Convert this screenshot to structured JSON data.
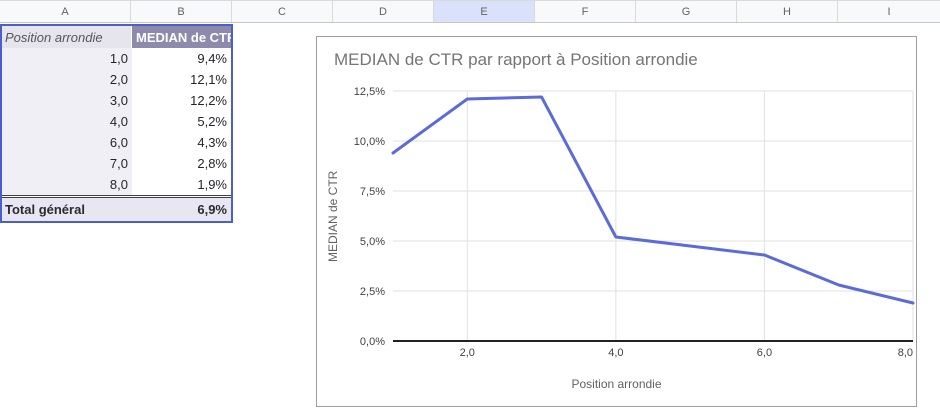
{
  "spreadsheet": {
    "column_headers": [
      "A",
      "B",
      "C",
      "D",
      "E",
      "F",
      "G",
      "H",
      "I"
    ],
    "highlighted_column": "E",
    "pivot_table": {
      "header": {
        "row_label": "Position arrondie",
        "value_label": "MEDIAN de CTR"
      },
      "rows": [
        {
          "pos": "1,0",
          "ctr": "9,4%"
        },
        {
          "pos": "2,0",
          "ctr": "12,1%"
        },
        {
          "pos": "3,0",
          "ctr": "12,2%"
        },
        {
          "pos": "4,0",
          "ctr": "5,2%"
        },
        {
          "pos": "6,0",
          "ctr": "4,3%"
        },
        {
          "pos": "7,0",
          "ctr": "2,8%"
        },
        {
          "pos": "8,0",
          "ctr": "1,9%"
        }
      ],
      "total": {
        "label": "Total général",
        "value": "6,9%"
      }
    },
    "colors": {
      "selection_border": "#4a5ecf",
      "pivot_header_bg": "#8d8aab",
      "highlight_column_bg": "#d9e1fb"
    }
  },
  "chart_data": {
    "type": "line",
    "title": "MEDIAN de CTR par rapport à Position arrondie",
    "xlabel": "Position arrondie",
    "ylabel": "MEDIAN de CTR",
    "x": [
      1,
      2,
      3,
      4,
      6,
      7,
      8
    ],
    "values": [
      9.4,
      12.1,
      12.2,
      5.2,
      4.3,
      2.8,
      1.9
    ],
    "xlim": [
      1,
      8
    ],
    "ylim": [
      0,
      12.5
    ],
    "x_ticks": {
      "values": [
        2,
        4,
        6,
        8
      ],
      "labels": [
        "2,0",
        "4,0",
        "6,0",
        "8,0"
      ]
    },
    "y_ticks": {
      "values": [
        0,
        2.5,
        5,
        7.5,
        10,
        12.5
      ],
      "labels": [
        "0,0%",
        "2,5%",
        "5,0%",
        "7,5%",
        "10,0%",
        "12,5%"
      ]
    },
    "grid": true,
    "legend": "none",
    "line_color": "#5b6bd7",
    "grid_color": "#e2e2e2",
    "axis_line_color": "#212121",
    "tick_label_color": "#424242",
    "title_color": "#757575"
  }
}
